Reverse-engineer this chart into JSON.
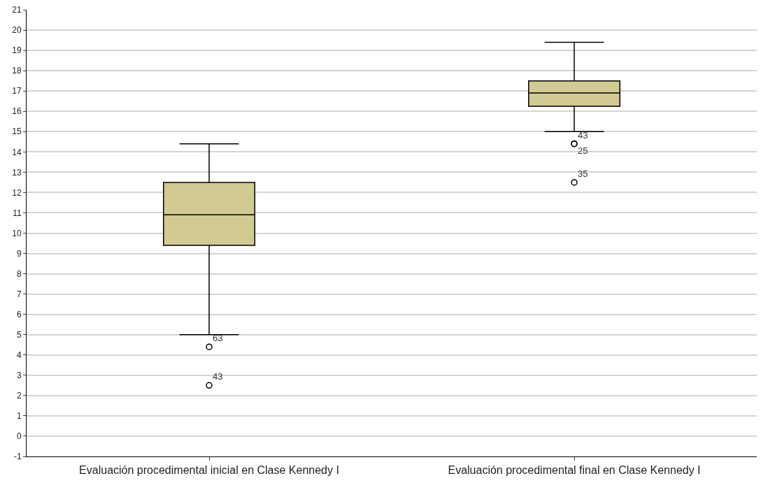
{
  "chart_data": {
    "type": "box",
    "categories": [
      "Evaluación procedimental inicial en Clase Kennedy I",
      "Evaluación procedimental final en Clase Kennedy I"
    ],
    "boxes": [
      {
        "low": 5.0,
        "q1": 9.4,
        "median": 10.9,
        "q3": 12.5,
        "high": 14.4
      },
      {
        "low": 15.0,
        "q1": 16.25,
        "median": 16.9,
        "q3": 17.5,
        "high": 19.4
      }
    ],
    "color": "#d1ca92",
    "series": [
      {
        "type": "scatter",
        "color": "#000000",
        "x": [
          "Evaluación procedimental inicial en Clase Kennedy I",
          "Evaluación procedimental inicial en Clase Kennedy I",
          "Evaluación procedimental final en Clase Kennedy I",
          "Evaluación procedimental final en Clase Kennedy I",
          "Evaluación procedimental final en Clase Kennedy I"
        ],
        "values": [
          4.4,
          2.5,
          14.4,
          14.4,
          12.5
        ]
      }
    ],
    "ylim": [
      -1,
      21
    ],
    "yticks": [
      -1,
      0,
      1,
      2,
      3,
      4,
      5,
      6,
      7,
      8,
      9,
      10,
      11,
      12,
      13,
      14,
      15,
      16,
      17,
      18,
      19,
      20,
      21
    ],
    "grid": "y",
    "marker": "circle",
    "annotations": [
      {
        "text": "63",
        "x": "Evaluación procedimental inicial en Clase Kennedy I",
        "y": 4.4
      },
      {
        "text": "43",
        "x": "Evaluación procedimental inicial en Clase Kennedy I",
        "y": 2.5
      },
      {
        "text": "43",
        "x": "Evaluación procedimental final en Clase Kennedy I",
        "y": 14.4
      },
      {
        "text": "25",
        "x": "Evaluación procedimental final en Clase Kennedy I",
        "y": 14.4
      },
      {
        "text": "35",
        "x": "Evaluación procedimental final en Clase Kennedy I",
        "y": 12.5
      }
    ]
  }
}
